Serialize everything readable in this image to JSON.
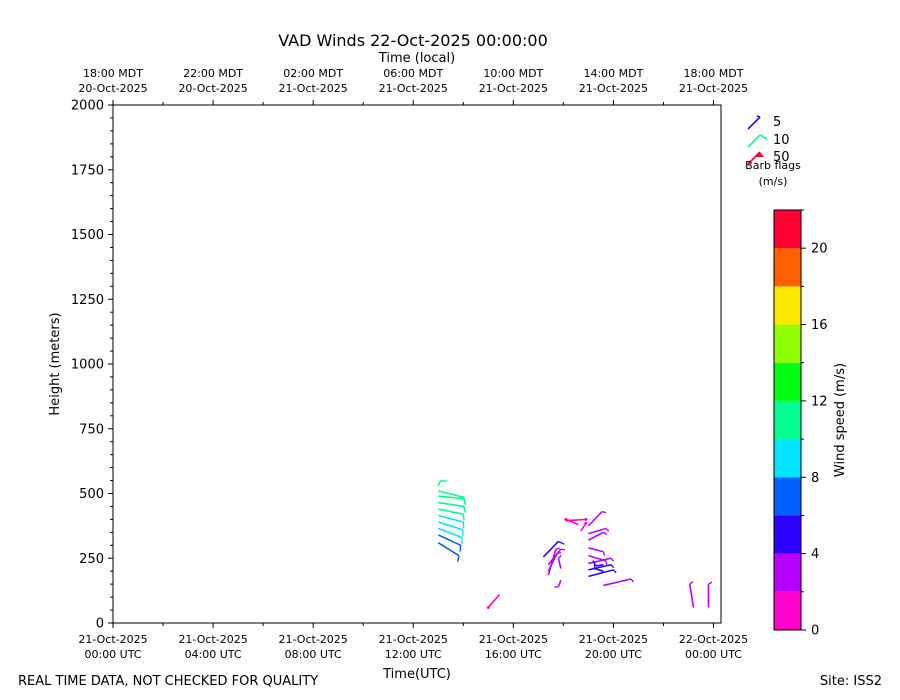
{
  "chart_data": {
    "type": "barbs",
    "title": "VAD Winds 22-Oct-2025 00:00:00",
    "top_axis_label": "Time (local)",
    "xlabel": "Time(UTC)",
    "ylabel": "Height (meters)",
    "x_ticks_utc": [
      {
        "t": 0,
        "label": [
          "21-Oct-2025",
          "00:00 UTC"
        ]
      },
      {
        "t": 4,
        "label": [
          "21-Oct-2025",
          "04:00 UTC"
        ]
      },
      {
        "t": 8,
        "label": [
          "21-Oct-2025",
          "08:00 UTC"
        ]
      },
      {
        "t": 12,
        "label": [
          "21-Oct-2025",
          "12:00 UTC"
        ]
      },
      {
        "t": 16,
        "label": [
          "21-Oct-2025",
          "16:00 UTC"
        ]
      },
      {
        "t": 20,
        "label": [
          "21-Oct-2025",
          "20:00 UTC"
        ]
      },
      {
        "t": 24,
        "label": [
          "22-Oct-2025",
          "00:00 UTC"
        ]
      }
    ],
    "x_ticks_local": [
      {
        "t": 0,
        "label": [
          "18:00 MDT",
          "20-Oct-2025"
        ]
      },
      {
        "t": 4,
        "label": [
          "22:00 MDT",
          "20-Oct-2025"
        ]
      },
      {
        "t": 8,
        "label": [
          "02:00 MDT",
          "21-Oct-2025"
        ]
      },
      {
        "t": 12,
        "label": [
          "06:00 MDT",
          "21-Oct-2025"
        ]
      },
      {
        "t": 16,
        "label": [
          "10:00 MDT",
          "21-Oct-2025"
        ]
      },
      {
        "t": 20,
        "label": [
          "14:00 MDT",
          "21-Oct-2025"
        ]
      },
      {
        "t": 24,
        "label": [
          "18:00 MDT",
          "21-Oct-2025"
        ]
      }
    ],
    "xlim_hours": [
      0,
      24.3
    ],
    "ylim": [
      0,
      2000
    ],
    "y_ticks": [
      0,
      250,
      500,
      750,
      1000,
      1250,
      1500,
      1750,
      2000
    ],
    "grid": false,
    "barb_legend": {
      "entries": [
        {
          "value": 5,
          "label": "5"
        },
        {
          "value": 10,
          "label": "10"
        },
        {
          "value": 50,
          "label": "50"
        }
      ],
      "title": [
        "Barb flags",
        "(m/s)"
      ]
    },
    "colorbar": {
      "label": "Wind speed (m/s)",
      "min": 0,
      "max": 22,
      "step": 2,
      "ticks": [
        0,
        4,
        8,
        12,
        16,
        20
      ],
      "colors": [
        "#ff00c8",
        "#b800ff",
        "#2e00ff",
        "#0060ff",
        "#00e4ff",
        "#00ff90",
        "#00ff10",
        "#90ff00",
        "#ffe800",
        "#ff6000",
        "#ff0030"
      ]
    },
    "barbs": [
      {
        "t": 13.0,
        "h": 310,
        "speed": 7,
        "len_dx": 0.83,
        "len_dh": -50
      },
      {
        "t": 13.0,
        "h": 340,
        "speed": 7.5,
        "len_dx": 0.9,
        "len_dh": -40
      },
      {
        "t": 13.0,
        "h": 365,
        "speed": 8.5,
        "len_dx": 0.95,
        "len_dh": -35
      },
      {
        "t": 13.0,
        "h": 390,
        "speed": 9,
        "len_dx": 0.98,
        "len_dh": -30
      },
      {
        "t": 13.0,
        "h": 415,
        "speed": 9.5,
        "len_dx": 1.0,
        "len_dh": -25
      },
      {
        "t": 13.0,
        "h": 440,
        "speed": 10,
        "len_dx": 1.0,
        "len_dh": -20
      },
      {
        "t": 13.0,
        "h": 465,
        "speed": 10.5,
        "len_dx": 1.03,
        "len_dh": -15
      },
      {
        "t": 13.0,
        "h": 490,
        "speed": 11,
        "len_dx": 1.03,
        "len_dh": -10
      },
      {
        "t": 13.0,
        "h": 510,
        "speed": 11,
        "len_dx": 1.03,
        "len_dh": -25
      },
      {
        "t": 13.0,
        "h": 530,
        "speed": 11.5,
        "len_dx": 0.1,
        "len_dh": 20
      },
      {
        "t": 15.0,
        "h": 60,
        "speed": 1,
        "len_dx": 0.45,
        "len_dh": 50
      },
      {
        "t": 17.2,
        "h": 255,
        "speed": 5,
        "len_dx": 0.6,
        "len_dh": 60
      },
      {
        "t": 17.4,
        "h": 185,
        "speed": 3,
        "len_dx": 0.3,
        "len_dh": 100
      },
      {
        "t": 17.4,
        "h": 200,
        "speed": 3,
        "len_dx": 0.35,
        "len_dh": 70
      },
      {
        "t": 17.4,
        "h": 225,
        "speed": 3,
        "len_dx": 0.5,
        "len_dh": 60
      },
      {
        "t": 17.9,
        "h": 165,
        "speed": 2.5,
        "len_dx": -0.1,
        "len_dh": -25
      },
      {
        "t": 17.9,
        "h": 210,
        "speed": 2.5,
        "len_dx": -0.1,
        "len_dh": 40
      },
      {
        "t": 18.1,
        "h": 400,
        "speed": 1.5,
        "len_dx": 0.5,
        "len_dh": -20
      },
      {
        "t": 18.9,
        "h": 400,
        "speed": 1.5,
        "len_dx": -0.8,
        "len_dh": -5
      },
      {
        "t": 18.9,
        "h": 385,
        "speed": 1.5,
        "len_dx": -0.2,
        "len_dh": -30
      },
      {
        "t": 19.0,
        "h": 180,
        "speed": 4.5,
        "len_dx": 1.0,
        "len_dh": 25
      },
      {
        "t": 19.0,
        "h": 205,
        "speed": 4.5,
        "len_dx": 0.9,
        "len_dh": 20
      },
      {
        "t": 19.0,
        "h": 230,
        "speed": 3.5,
        "len_dx": 0.9,
        "len_dh": 20
      },
      {
        "t": 19.0,
        "h": 260,
        "speed": 2.5,
        "len_dx": 0.7,
        "len_dh": -20
      },
      {
        "t": 19.0,
        "h": 290,
        "speed": 2.5,
        "len_dx": 0.6,
        "len_dh": -15
      },
      {
        "t": 19.0,
        "h": 320,
        "speed": 2.5,
        "len_dx": 0.6,
        "len_dh": 30
      },
      {
        "t": 19.0,
        "h": 345,
        "speed": 2.5,
        "len_dx": 0.7,
        "len_dh": 20
      },
      {
        "t": 19.0,
        "h": 375,
        "speed": 2.0,
        "len_dx": 0.55,
        "len_dh": 55
      },
      {
        "t": 19.6,
        "h": 145,
        "speed": 3.5,
        "len_dx": 1.1,
        "len_dh": 25
      },
      {
        "t": 19.6,
        "h": 200,
        "speed": 5.5,
        "len_dx": -0.35,
        "len_dh": 10
      },
      {
        "t": 19.6,
        "h": 225,
        "speed": 5.5,
        "len_dx": -0.3,
        "len_dh": -5
      },
      {
        "t": 23.2,
        "h": 60,
        "speed": 3,
        "len_dx": -0.15,
        "len_dh": 90
      },
      {
        "t": 23.8,
        "h": 60,
        "speed": 3,
        "len_dx": 0.0,
        "len_dh": 90
      }
    ]
  },
  "footer": {
    "left": "REAL TIME DATA, NOT CHECKED FOR QUALITY",
    "right": "Site: ISS2"
  }
}
